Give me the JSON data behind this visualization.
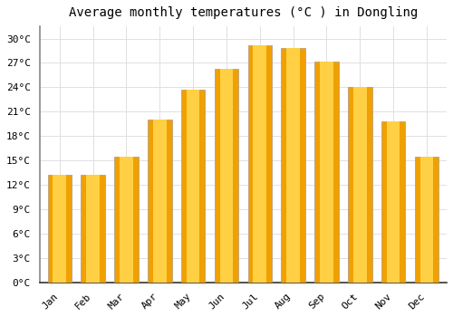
{
  "title": "Average monthly temperatures (°C ) in Dongling",
  "months": [
    "Jan",
    "Feb",
    "Mar",
    "Apr",
    "May",
    "Jun",
    "Jul",
    "Aug",
    "Sep",
    "Oct",
    "Nov",
    "Dec"
  ],
  "temperatures": [
    13.3,
    13.2,
    15.5,
    20.0,
    23.7,
    26.3,
    29.2,
    28.8,
    27.2,
    24.0,
    19.8,
    15.5
  ],
  "bar_color_outer": "#F0A000",
  "bar_color_inner": "#FFD044",
  "bar_edge_color": "#B8A080",
  "yticks": [
    0,
    3,
    6,
    9,
    12,
    15,
    18,
    21,
    24,
    27,
    30
  ],
  "ylim": [
    0,
    31.5
  ],
  "grid_color": "#e0e0e0",
  "background_color": "#ffffff",
  "title_fontsize": 10,
  "tick_fontsize": 8,
  "font_family": "monospace",
  "bar_width": 0.72
}
